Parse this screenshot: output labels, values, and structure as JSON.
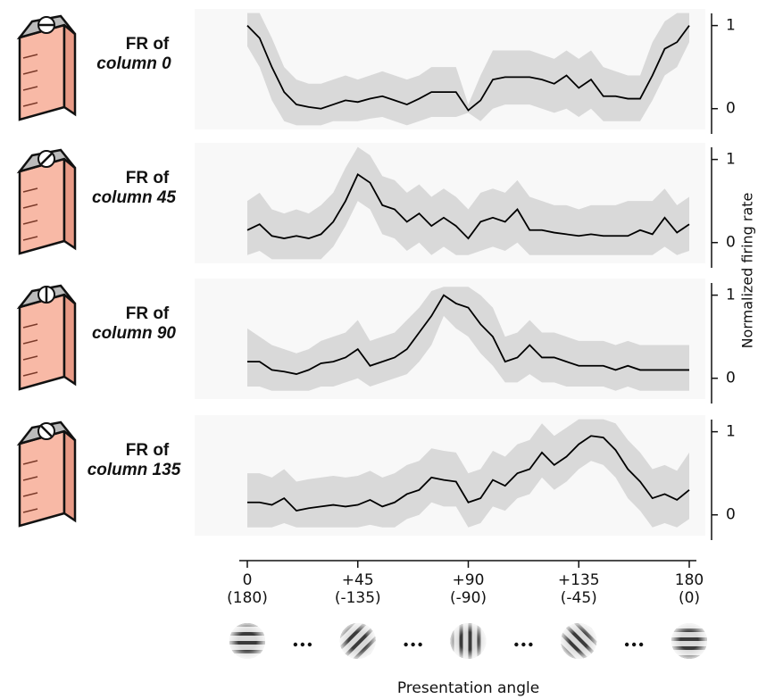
{
  "chart_data": [
    {
      "type": "line",
      "title": "FR of",
      "subtitle": "column 0",
      "x": [
        0,
        5,
        10,
        15,
        20,
        25,
        30,
        35,
        40,
        45,
        50,
        55,
        60,
        65,
        70,
        75,
        80,
        85,
        90,
        95,
        100,
        105,
        110,
        115,
        120,
        125,
        130,
        135,
        140,
        145,
        150,
        155,
        160,
        165,
        170,
        175,
        180
      ],
      "xlim": [
        0,
        180
      ],
      "ylim": [
        -0.25,
        1.2
      ],
      "yticks": [
        0,
        1
      ],
      "series": [
        {
          "color": "#000000",
          "band_color": "#d9d9d9",
          "values": [
            1,
            0.85,
            0.5,
            0.2,
            0.05,
            0.02,
            0,
            0.05,
            0.1,
            0.08,
            0.12,
            0.15,
            0.1,
            0.05,
            0.12,
            0.2,
            0.2,
            0.2,
            -0.02,
            0.1,
            0.35,
            0.38,
            0.38,
            0.38,
            0.35,
            0.3,
            0.4,
            0.25,
            0.35,
            0.15,
            0.15,
            0.12,
            0.12,
            0.4,
            0.72,
            0.8,
            1.0
          ],
          "lower": [
            0.75,
            0.5,
            0.1,
            -0.15,
            -0.2,
            -0.2,
            -0.2,
            -0.15,
            -0.15,
            -0.15,
            -0.12,
            -0.1,
            -0.15,
            -0.2,
            -0.15,
            -0.1,
            -0.1,
            -0.1,
            -0.05,
            -0.15,
            0,
            0.05,
            0.05,
            0.05,
            0,
            -0.05,
            0,
            -0.1,
            0,
            -0.15,
            -0.15,
            -0.15,
            -0.15,
            0.1,
            0.4,
            0.5,
            0.8
          ],
          "upper": [
            1.15,
            1.15,
            0.85,
            0.5,
            0.35,
            0.3,
            0.3,
            0.35,
            0.4,
            0.35,
            0.4,
            0.45,
            0.4,
            0.35,
            0.4,
            0.5,
            0.5,
            0.5,
            0.05,
            0.4,
            0.7,
            0.7,
            0.7,
            0.7,
            0.65,
            0.6,
            0.7,
            0.6,
            0.7,
            0.5,
            0.45,
            0.4,
            0.4,
            0.8,
            1.05,
            1.15,
            1.15
          ]
        }
      ]
    },
    {
      "type": "line",
      "title": "FR of",
      "subtitle": "column 45",
      "ylabel": "Normalized firing rate",
      "x": [
        0,
        5,
        10,
        15,
        20,
        25,
        30,
        35,
        40,
        45,
        50,
        55,
        60,
        65,
        70,
        75,
        80,
        85,
        90,
        95,
        100,
        105,
        110,
        115,
        120,
        125,
        130,
        135,
        140,
        145,
        150,
        155,
        160,
        165,
        170,
        175,
        180
      ],
      "xlim": [
        0,
        180
      ],
      "ylim": [
        -0.25,
        1.2
      ],
      "yticks": [
        0,
        1
      ],
      "series": [
        {
          "color": "#000000",
          "band_color": "#d9d9d9",
          "values": [
            0.15,
            0.22,
            0.08,
            0.05,
            0.08,
            0.05,
            0.1,
            0.25,
            0.5,
            0.82,
            0.72,
            0.45,
            0.4,
            0.25,
            0.35,
            0.2,
            0.3,
            0.2,
            0.05,
            0.25,
            0.3,
            0.25,
            0.4,
            0.15,
            0.15,
            0.12,
            0.1,
            0.08,
            0.1,
            0.08,
            0.08,
            0.08,
            0.15,
            0.1,
            0.3,
            0.12,
            0.22
          ],
          "lower": [
            -0.15,
            -0.1,
            -0.2,
            -0.2,
            -0.2,
            -0.2,
            -0.2,
            -0.05,
            0.2,
            0.5,
            0.4,
            0.1,
            0.05,
            -0.1,
            0,
            -0.15,
            -0.05,
            -0.15,
            -0.15,
            -0.1,
            -0.05,
            -0.1,
            0,
            -0.15,
            -0.15,
            -0.15,
            -0.15,
            -0.15,
            -0.15,
            -0.15,
            -0.15,
            -0.15,
            -0.15,
            -0.15,
            -0.05,
            -0.15,
            -0.1
          ],
          "upper": [
            0.5,
            0.6,
            0.4,
            0.35,
            0.4,
            0.35,
            0.45,
            0.6,
            0.9,
            1.15,
            1.05,
            0.8,
            0.75,
            0.6,
            0.7,
            0.55,
            0.65,
            0.55,
            0.4,
            0.6,
            0.65,
            0.6,
            0.75,
            0.55,
            0.5,
            0.45,
            0.45,
            0.4,
            0.45,
            0.45,
            0.45,
            0.5,
            0.5,
            0.5,
            0.65,
            0.45,
            0.55
          ]
        }
      ]
    },
    {
      "type": "line",
      "title": "FR of",
      "subtitle": "column 90",
      "x": [
        0,
        5,
        10,
        15,
        20,
        25,
        30,
        35,
        40,
        45,
        50,
        55,
        60,
        65,
        70,
        75,
        80,
        85,
        90,
        95,
        100,
        105,
        110,
        115,
        120,
        125,
        130,
        135,
        140,
        145,
        150,
        155,
        160,
        165,
        170,
        175,
        180
      ],
      "xlim": [
        0,
        180
      ],
      "ylim": [
        -0.25,
        1.2
      ],
      "yticks": [
        0,
        1
      ],
      "series": [
        {
          "color": "#000000",
          "band_color": "#d9d9d9",
          "values": [
            0.2,
            0.2,
            0.1,
            0.08,
            0.05,
            0.1,
            0.18,
            0.2,
            0.25,
            0.35,
            0.15,
            0.2,
            0.25,
            0.35,
            0.55,
            0.75,
            1.0,
            0.9,
            0.85,
            0.65,
            0.5,
            0.2,
            0.25,
            0.4,
            0.25,
            0.25,
            0.2,
            0.15,
            0.15,
            0.15,
            0.1,
            0.15,
            0.1,
            0.1,
            0.1,
            0.1,
            0.1
          ],
          "lower": [
            -0.1,
            -0.1,
            -0.15,
            -0.15,
            -0.15,
            -0.15,
            -0.1,
            -0.1,
            -0.05,
            0,
            -0.1,
            -0.05,
            0,
            0.05,
            0.2,
            0.4,
            0.75,
            0.6,
            0.5,
            0.3,
            0.15,
            -0.05,
            -0.05,
            0.05,
            -0.05,
            -0.05,
            -0.1,
            -0.1,
            -0.1,
            -0.1,
            -0.15,
            -0.1,
            -0.15,
            -0.15,
            -0.15,
            -0.15,
            -0.15
          ],
          "upper": [
            0.6,
            0.5,
            0.4,
            0.35,
            0.3,
            0.35,
            0.45,
            0.5,
            0.55,
            0.7,
            0.45,
            0.5,
            0.55,
            0.7,
            0.85,
            1.05,
            1.1,
            1.1,
            1.1,
            1.0,
            0.85,
            0.5,
            0.55,
            0.7,
            0.55,
            0.55,
            0.5,
            0.45,
            0.45,
            0.45,
            0.4,
            0.45,
            0.4,
            0.4,
            0.4,
            0.4,
            0.4
          ]
        }
      ]
    },
    {
      "type": "line",
      "title": "FR of",
      "subtitle": "column 135",
      "xlabel": "Presentation angle",
      "x": [
        0,
        5,
        10,
        15,
        20,
        25,
        30,
        35,
        40,
        45,
        50,
        55,
        60,
        65,
        70,
        75,
        80,
        85,
        90,
        95,
        100,
        105,
        110,
        115,
        120,
        125,
        130,
        135,
        140,
        145,
        150,
        155,
        160,
        165,
        170,
        175,
        180
      ],
      "xlim": [
        0,
        180
      ],
      "ylim": [
        -0.25,
        1.2
      ],
      "yticks": [
        0,
        1
      ],
      "xticks": [
        {
          "value": 0,
          "label": "0",
          "label2": "(180)"
        },
        {
          "value": 45,
          "label": "+45",
          "label2": "(-135)"
        },
        {
          "value": 90,
          "label": "+90",
          "label2": "(-90)"
        },
        {
          "value": 135,
          "label": "+135",
          "label2": "(-45)"
        },
        {
          "value": 180,
          "label": "180",
          "label2": "(0)"
        }
      ],
      "series": [
        {
          "color": "#000000",
          "band_color": "#d9d9d9",
          "values": [
            0.15,
            0.15,
            0.12,
            0.2,
            0.05,
            0.08,
            0.1,
            0.12,
            0.1,
            0.12,
            0.18,
            0.1,
            0.15,
            0.25,
            0.3,
            0.45,
            0.42,
            0.4,
            0.15,
            0.2,
            0.42,
            0.35,
            0.5,
            0.55,
            0.75,
            0.6,
            0.7,
            0.85,
            0.95,
            0.93,
            0.78,
            0.55,
            0.4,
            0.2,
            0.25,
            0.18,
            0.3
          ],
          "lower": [
            -0.15,
            -0.15,
            -0.15,
            -0.1,
            -0.15,
            -0.15,
            -0.15,
            -0.15,
            -0.15,
            -0.15,
            -0.12,
            -0.15,
            -0.15,
            -0.05,
            0,
            0.15,
            0.1,
            0.1,
            -0.15,
            -0.1,
            0.1,
            0.05,
            0.2,
            0.25,
            0.45,
            0.3,
            0.4,
            0.55,
            0.65,
            0.6,
            0.45,
            0.2,
            0.05,
            -0.15,
            -0.1,
            -0.15,
            -0.05
          ],
          "upper": [
            0.5,
            0.5,
            0.45,
            0.55,
            0.4,
            0.43,
            0.45,
            0.47,
            0.45,
            0.47,
            0.53,
            0.45,
            0.5,
            0.6,
            0.65,
            0.8,
            0.77,
            0.75,
            0.5,
            0.55,
            0.77,
            0.7,
            0.85,
            0.9,
            1.1,
            0.95,
            1.05,
            1.15,
            1.15,
            1.15,
            1.1,
            0.9,
            0.75,
            0.55,
            0.6,
            0.53,
            0.75
          ]
        }
      ]
    }
  ]
}
